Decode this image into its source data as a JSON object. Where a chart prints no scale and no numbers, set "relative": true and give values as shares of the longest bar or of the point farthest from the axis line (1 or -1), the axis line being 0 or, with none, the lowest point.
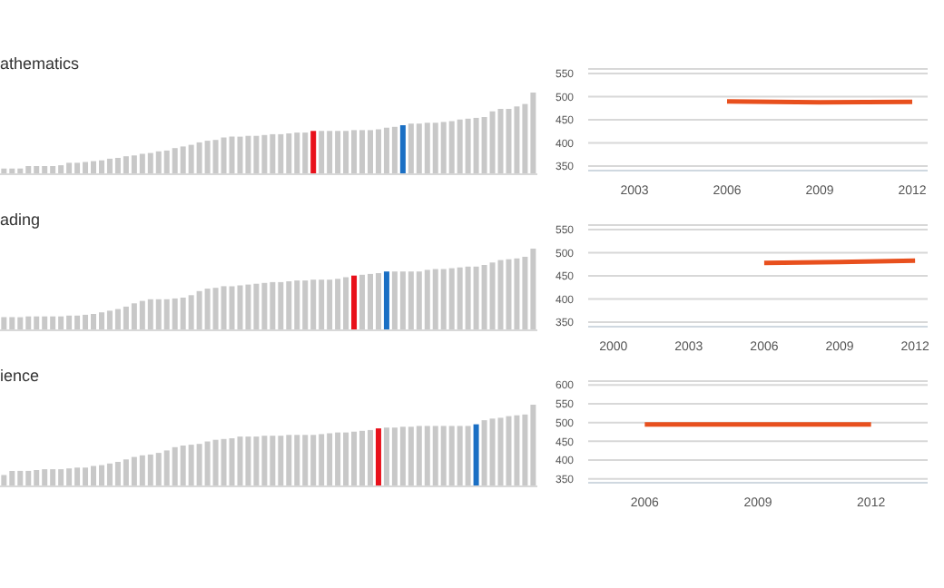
{
  "chart_data": [
    {
      "type": "bar",
      "title": "athematics",
      "relative": true,
      "categories": [
        null,
        null,
        null,
        null,
        null,
        null,
        null,
        null,
        null,
        null,
        null,
        null,
        null,
        null,
        null,
        null,
        null,
        null,
        null,
        null,
        null,
        null,
        null,
        null,
        null,
        null,
        null,
        null,
        null,
        null,
        null,
        null,
        null,
        null,
        null,
        null,
        null,
        null,
        null,
        null,
        null,
        null,
        null,
        null,
        null,
        null,
        null,
        null,
        null,
        null,
        null,
        null,
        null,
        null,
        null,
        null,
        null,
        null,
        null,
        null,
        null,
        null,
        null,
        null,
        null,
        null
      ],
      "values": [
        0.07,
        0.07,
        0.07,
        0.1,
        0.1,
        0.1,
        0.1,
        0.11,
        0.14,
        0.14,
        0.15,
        0.16,
        0.17,
        0.19,
        0.2,
        0.22,
        0.23,
        0.25,
        0.26,
        0.28,
        0.29,
        0.32,
        0.34,
        0.36,
        0.39,
        0.41,
        0.42,
        0.45,
        0.46,
        0.46,
        0.47,
        0.47,
        0.48,
        0.49,
        0.49,
        0.5,
        0.51,
        0.51,
        0.53,
        0.53,
        0.53,
        0.53,
        0.53,
        0.54,
        0.54,
        0.54,
        0.55,
        0.57,
        0.58,
        0.6,
        0.62,
        0.62,
        0.63,
        0.63,
        0.64,
        0.65,
        0.67,
        0.68,
        0.69,
        0.7,
        0.77,
        0.8,
        0.8,
        0.83,
        0.86,
        1
      ],
      "colors": [
        "#c8c8c8",
        "#c8c8c8",
        "#c8c8c8",
        "#c8c8c8",
        "#c8c8c8",
        "#c8c8c8",
        "#c8c8c8",
        "#c8c8c8",
        "#c8c8c8",
        "#c8c8c8",
        "#c8c8c8",
        "#c8c8c8",
        "#c8c8c8",
        "#c8c8c8",
        "#c8c8c8",
        "#c8c8c8",
        "#c8c8c8",
        "#c8c8c8",
        "#c8c8c8",
        "#c8c8c8",
        "#c8c8c8",
        "#c8c8c8",
        "#c8c8c8",
        "#c8c8c8",
        "#c8c8c8",
        "#c8c8c8",
        "#c8c8c8",
        "#c8c8c8",
        "#c8c8c8",
        "#c8c8c8",
        "#c8c8c8",
        "#c8c8c8",
        "#c8c8c8",
        "#c8c8c8",
        "#c8c8c8",
        "#c8c8c8",
        "#c8c8c8",
        "#c8c8c8",
        "#e8101a",
        "#c8c8c8",
        "#c8c8c8",
        "#c8c8c8",
        "#c8c8c8",
        "#c8c8c8",
        "#c8c8c8",
        "#c8c8c8",
        "#c8c8c8",
        "#c8c8c8",
        "#c8c8c8",
        "#1a6fc4",
        "#c8c8c8",
        "#c8c8c8",
        "#c8c8c8",
        "#c8c8c8",
        "#c8c8c8",
        "#c8c8c8",
        "#c8c8c8",
        "#c8c8c8",
        "#c8c8c8",
        "#c8c8c8",
        "#c8c8c8",
        "#c8c8c8",
        "#c8c8c8",
        "#c8c8c8",
        "#c8c8c8",
        "#c8c8c8"
      ]
    },
    {
      "type": "line",
      "grid": "y",
      "marker": "none",
      "x": [
        2006,
        2009,
        2012
      ],
      "xlim": [
        2001.5,
        2012.5
      ],
      "xticks": [
        2003,
        2006,
        2009,
        2012
      ],
      "ylim": [
        340,
        560
      ],
      "yticks": [
        350,
        400,
        450,
        500,
        550
      ],
      "series": [
        {
          "color": "#e8501e",
          "values": [
            490,
            488,
            489
          ]
        }
      ]
    },
    {
      "type": "bar",
      "title": "ading",
      "relative": true,
      "categories": [
        null,
        null,
        null,
        null,
        null,
        null,
        null,
        null,
        null,
        null,
        null,
        null,
        null,
        null,
        null,
        null,
        null,
        null,
        null,
        null,
        null,
        null,
        null,
        null,
        null,
        null,
        null,
        null,
        null,
        null,
        null,
        null,
        null,
        null,
        null,
        null,
        null,
        null,
        null,
        null,
        null,
        null,
        null,
        null,
        null,
        null,
        null,
        null,
        null,
        null,
        null,
        null,
        null,
        null,
        null,
        null,
        null,
        null,
        null,
        null,
        null,
        null,
        null,
        null,
        null,
        null
      ],
      "values": [
        0.16,
        0.16,
        0.16,
        0.17,
        0.17,
        0.17,
        0.17,
        0.17,
        0.18,
        0.18,
        0.19,
        0.2,
        0.22,
        0.24,
        0.26,
        0.29,
        0.33,
        0.36,
        0.38,
        0.38,
        0.38,
        0.39,
        0.4,
        0.43,
        0.48,
        0.51,
        0.52,
        0.54,
        0.54,
        0.55,
        0.56,
        0.57,
        0.58,
        0.59,
        0.59,
        0.6,
        0.61,
        0.61,
        0.62,
        0.62,
        0.62,
        0.63,
        0.65,
        0.67,
        0.68,
        0.69,
        0.7,
        0.72,
        0.72,
        0.72,
        0.72,
        0.72,
        0.74,
        0.75,
        0.75,
        0.76,
        0.77,
        0.78,
        0.78,
        0.8,
        0.83,
        0.86,
        0.87,
        0.88,
        0.9,
        1
      ],
      "colors": [
        "#c8c8c8",
        "#c8c8c8",
        "#c8c8c8",
        "#c8c8c8",
        "#c8c8c8",
        "#c8c8c8",
        "#c8c8c8",
        "#c8c8c8",
        "#c8c8c8",
        "#c8c8c8",
        "#c8c8c8",
        "#c8c8c8",
        "#c8c8c8",
        "#c8c8c8",
        "#c8c8c8",
        "#c8c8c8",
        "#c8c8c8",
        "#c8c8c8",
        "#c8c8c8",
        "#c8c8c8",
        "#c8c8c8",
        "#c8c8c8",
        "#c8c8c8",
        "#c8c8c8",
        "#c8c8c8",
        "#c8c8c8",
        "#c8c8c8",
        "#c8c8c8",
        "#c8c8c8",
        "#c8c8c8",
        "#c8c8c8",
        "#c8c8c8",
        "#c8c8c8",
        "#c8c8c8",
        "#c8c8c8",
        "#c8c8c8",
        "#c8c8c8",
        "#c8c8c8",
        "#c8c8c8",
        "#c8c8c8",
        "#c8c8c8",
        "#c8c8c8",
        "#c8c8c8",
        "#e8101a",
        "#c8c8c8",
        "#c8c8c8",
        "#c8c8c8",
        "#1a6fc4",
        "#c8c8c8",
        "#c8c8c8",
        "#c8c8c8",
        "#c8c8c8",
        "#c8c8c8",
        "#c8c8c8",
        "#c8c8c8",
        "#c8c8c8",
        "#c8c8c8",
        "#c8c8c8",
        "#c8c8c8",
        "#c8c8c8",
        "#c8c8c8",
        "#c8c8c8",
        "#c8c8c8",
        "#c8c8c8",
        "#c8c8c8",
        "#c8c8c8"
      ]
    },
    {
      "type": "line",
      "grid": "y",
      "marker": "none",
      "x": [
        2006,
        2009,
        2012
      ],
      "xlim": [
        1999,
        2012.5
      ],
      "xticks": [
        2000,
        2003,
        2006,
        2009,
        2012
      ],
      "ylim": [
        340,
        560
      ],
      "yticks": [
        350,
        400,
        450,
        500,
        550
      ],
      "series": [
        {
          "color": "#e8501e",
          "values": [
            478,
            480,
            483
          ]
        }
      ]
    },
    {
      "type": "bar",
      "title": "ience",
      "relative": true,
      "categories": [
        null,
        null,
        null,
        null,
        null,
        null,
        null,
        null,
        null,
        null,
        null,
        null,
        null,
        null,
        null,
        null,
        null,
        null,
        null,
        null,
        null,
        null,
        null,
        null,
        null,
        null,
        null,
        null,
        null,
        null,
        null,
        null,
        null,
        null,
        null,
        null,
        null,
        null,
        null,
        null,
        null,
        null,
        null,
        null,
        null,
        null,
        null,
        null,
        null,
        null,
        null,
        null,
        null,
        null,
        null,
        null,
        null,
        null,
        null,
        null,
        null,
        null,
        null,
        null,
        null,
        null
      ],
      "values": [
        0.14,
        0.19,
        0.19,
        0.19,
        0.2,
        0.21,
        0.21,
        0.21,
        0.22,
        0.23,
        0.23,
        0.25,
        0.26,
        0.28,
        0.3,
        0.33,
        0.36,
        0.38,
        0.39,
        0.41,
        0.44,
        0.48,
        0.5,
        0.51,
        0.52,
        0.55,
        0.57,
        0.58,
        0.59,
        0.61,
        0.61,
        0.61,
        0.62,
        0.62,
        0.62,
        0.63,
        0.63,
        0.63,
        0.63,
        0.64,
        0.65,
        0.66,
        0.66,
        0.67,
        0.68,
        0.69,
        0.71,
        0.72,
        0.72,
        0.73,
        0.73,
        0.74,
        0.74,
        0.74,
        0.74,
        0.74,
        0.74,
        0.74,
        0.76,
        0.81,
        0.83,
        0.84,
        0.86,
        0.87,
        0.88,
        1
      ],
      "colors": [
        "#c8c8c8",
        "#c8c8c8",
        "#c8c8c8",
        "#c8c8c8",
        "#c8c8c8",
        "#c8c8c8",
        "#c8c8c8",
        "#c8c8c8",
        "#c8c8c8",
        "#c8c8c8",
        "#c8c8c8",
        "#c8c8c8",
        "#c8c8c8",
        "#c8c8c8",
        "#c8c8c8",
        "#c8c8c8",
        "#c8c8c8",
        "#c8c8c8",
        "#c8c8c8",
        "#c8c8c8",
        "#c8c8c8",
        "#c8c8c8",
        "#c8c8c8",
        "#c8c8c8",
        "#c8c8c8",
        "#c8c8c8",
        "#c8c8c8",
        "#c8c8c8",
        "#c8c8c8",
        "#c8c8c8",
        "#c8c8c8",
        "#c8c8c8",
        "#c8c8c8",
        "#c8c8c8",
        "#c8c8c8",
        "#c8c8c8",
        "#c8c8c8",
        "#c8c8c8",
        "#c8c8c8",
        "#c8c8c8",
        "#c8c8c8",
        "#c8c8c8",
        "#c8c8c8",
        "#c8c8c8",
        "#c8c8c8",
        "#c8c8c8",
        "#e8101a",
        "#c8c8c8",
        "#c8c8c8",
        "#c8c8c8",
        "#c8c8c8",
        "#c8c8c8",
        "#c8c8c8",
        "#c8c8c8",
        "#c8c8c8",
        "#c8c8c8",
        "#c8c8c8",
        "#c8c8c8",
        "#1a6fc4",
        "#c8c8c8",
        "#c8c8c8",
        "#c8c8c8",
        "#c8c8c8",
        "#c8c8c8",
        "#c8c8c8",
        "#c8c8c8"
      ]
    },
    {
      "type": "line",
      "grid": "y",
      "marker": "none",
      "x": [
        2006,
        2009,
        2012
      ],
      "xlim": [
        2004.5,
        2013.5
      ],
      "xticks": [
        2006,
        2009,
        2012
      ],
      "ylim": [
        340,
        610
      ],
      "yticks": [
        350,
        400,
        450,
        500,
        550,
        600
      ],
      "series": [
        {
          "color": "#e8501e",
          "values": [
            495,
            495,
            495
          ]
        }
      ]
    }
  ]
}
